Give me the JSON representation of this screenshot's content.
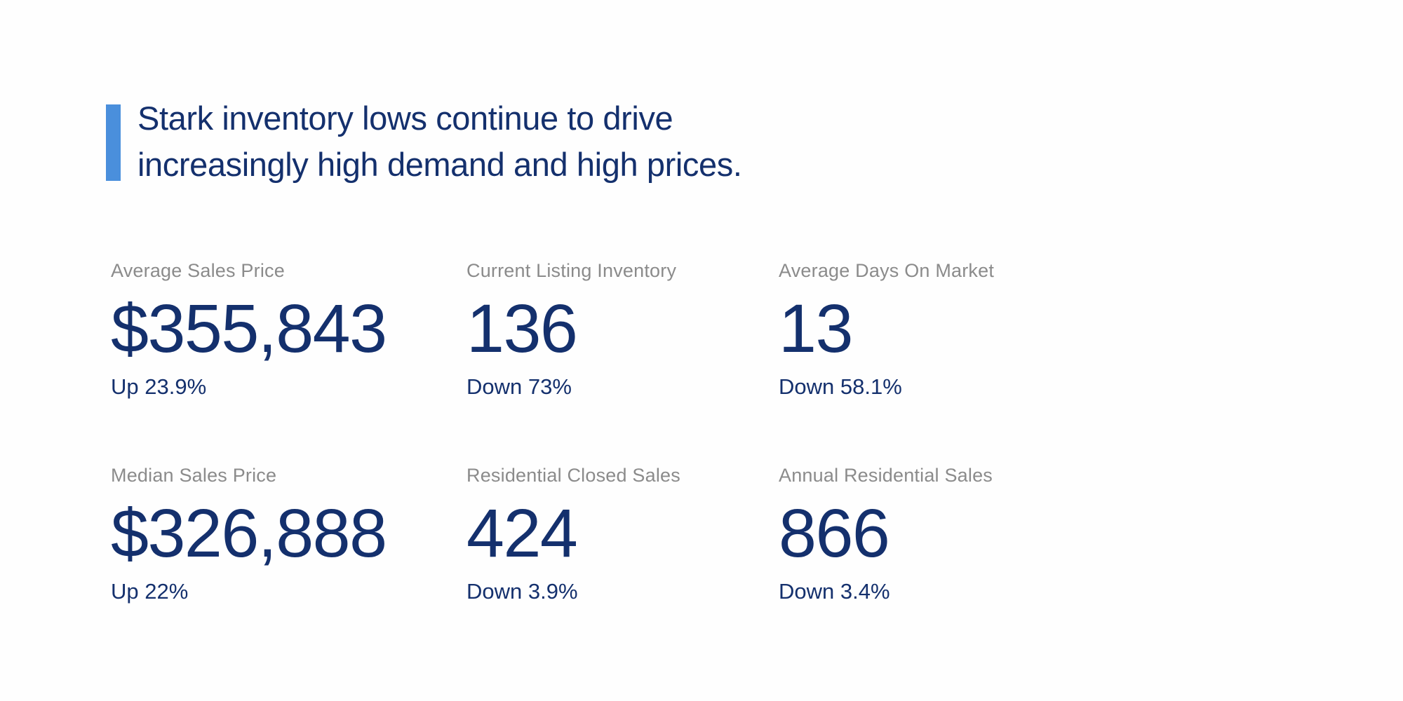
{
  "theme": {
    "accent": "#4a8fdc",
    "navy": "#14306d",
    "gray": "#8b8b8b",
    "background": "#fefefe"
  },
  "header": {
    "headline_line1": "Stark inventory lows continue to drive",
    "headline_line2": "increasingly high demand and high prices."
  },
  "stats": {
    "items": [
      {
        "label": "Average Sales Price",
        "value": "$355,843",
        "change": "Up 23.9%"
      },
      {
        "label": "Current Listing Inventory",
        "value": "136",
        "change": "Down 73%"
      },
      {
        "label": "Average Days On Market",
        "value": "13",
        "change": "Down 58.1%"
      },
      {
        "label": "Median Sales Price",
        "value": "$326,888",
        "change": "Up 22%"
      },
      {
        "label": "Residential Closed Sales",
        "value": "424",
        "change": "Down 3.9%"
      },
      {
        "label": "Annual Residential Sales",
        "value": "866",
        "change": "Down 3.4%"
      }
    ]
  }
}
